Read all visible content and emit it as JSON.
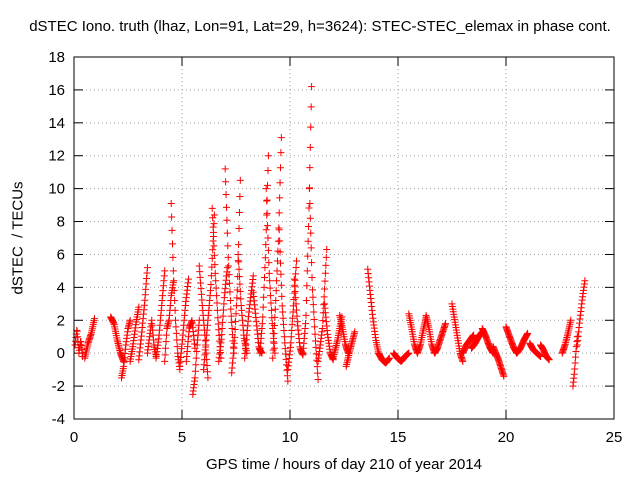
{
  "chart_data": {
    "type": "scatter",
    "title": "dSTEC Iono. truth (lhaz, Lon=91, Lat=29, h=3624): STEC-STEC_elemax in phase cont.",
    "xlabel": "GPS time / hours of day 210 of year 2014",
    "ylabel": "dSTEC  / TECUs",
    "xlim": [
      0,
      25
    ],
    "ylim": [
      -4,
      18
    ],
    "xticks": [
      "0",
      "5",
      "10",
      "15",
      "20",
      "25"
    ],
    "yticks": [
      "-4",
      "-2",
      "0",
      "2",
      "4",
      "6",
      "8",
      "10",
      "12",
      "14",
      "16",
      "18"
    ],
    "grid": true,
    "marker": "+",
    "color": "#ff0000",
    "arcs": [
      {
        "x0": 0.05,
        "x1": 0.4,
        "y": [
          0.5,
          1.5,
          0.0,
          0.8,
          -0.2
        ]
      },
      {
        "x0": 0.5,
        "x1": 0.95,
        "y": [
          -0.3,
          0.6,
          1.2,
          2.1
        ]
      },
      {
        "x0": 1.7,
        "x1": 2.3,
        "y": [
          2.2,
          1.8,
          0.8,
          0.0,
          -0.5
        ]
      },
      {
        "x0": 2.2,
        "x1": 2.6,
        "y": [
          -1.5,
          -0.8,
          0.5,
          1.5,
          2.0
        ]
      },
      {
        "x0": 2.6,
        "x1": 3.0,
        "y": [
          -0.5,
          0.5,
          1.8,
          2.8
        ]
      },
      {
        "x0": 3.0,
        "x1": 3.4,
        "y": [
          -0.4,
          1.2,
          3.0,
          5.2
        ]
      },
      {
        "x0": 3.4,
        "x1": 3.8,
        "y": [
          0.0,
          1.0,
          2.0,
          0.5,
          -0.2
        ]
      },
      {
        "x0": 3.8,
        "x1": 4.2,
        "y": [
          -0.3,
          1.0,
          3.0,
          5.0
        ]
      },
      {
        "x0": 4.2,
        "x1": 4.6,
        "y": [
          -0.5,
          1.5,
          2.0,
          3.5,
          4.3
        ]
      },
      {
        "x0": 4.5,
        "x1": 4.9,
        "y": [
          9.1,
          5.0,
          2.0,
          0.0,
          -1.0
        ]
      },
      {
        "x0": 4.9,
        "x1": 5.3,
        "y": [
          -0.8,
          1.0,
          3.0,
          4.5
        ]
      },
      {
        "x0": 5.2,
        "x1": 5.6,
        "y": [
          -0.5,
          1.5,
          2.0,
          0.3
        ]
      },
      {
        "x0": 5.5,
        "x1": 5.8,
        "y": [
          -2.5,
          -1.5,
          0.5,
          2.0
        ]
      },
      {
        "x0": 5.8,
        "x1": 6.2,
        "y": [
          5.3,
          3.0,
          1.0,
          -1.5
        ]
      },
      {
        "x0": 6.0,
        "x1": 6.5,
        "y": [
          -1.0,
          1.5,
          4.0,
          8.4
        ]
      },
      {
        "x0": 6.4,
        "x1": 6.8,
        "y": [
          8.8,
          5.0,
          2.0,
          -0.3
        ]
      },
      {
        "x0": 6.7,
        "x1": 7.1,
        "y": [
          -0.5,
          1.0,
          3.5,
          5.2
        ]
      },
      {
        "x0": 7.0,
        "x1": 7.4,
        "y": [
          11.2,
          6.0,
          2.5,
          0.0
        ]
      },
      {
        "x0": 7.3,
        "x1": 7.7,
        "y": [
          -1.2,
          0.8,
          4.0,
          10.5
        ]
      },
      {
        "x0": 7.6,
        "x1": 8.0,
        "y": [
          6.0,
          3.0,
          1.0,
          0.0
        ]
      },
      {
        "x0": 7.9,
        "x1": 8.3,
        "y": [
          -0.3,
          2.5,
          4.7
        ]
      },
      {
        "x0": 8.3,
        "x1": 8.7,
        "y": [
          3.7,
          2.0,
          0.3,
          0.0
        ]
      },
      {
        "x0": 8.6,
        "x1": 9.0,
        "y": [
          0.0,
          2.0,
          6.0,
          12.0
        ]
      },
      {
        "x0": 8.9,
        "x1": 9.3,
        "y": [
          10.0,
          5.0,
          2.0,
          0.0
        ]
      },
      {
        "x0": 9.2,
        "x1": 9.6,
        "y": [
          -0.3,
          3.0,
          7.0,
          13.1
        ]
      },
      {
        "x0": 9.5,
        "x1": 9.9,
        "y": [
          7.5,
          3.0,
          0.5,
          -1.7
        ]
      },
      {
        "x0": 9.9,
        "x1": 10.3,
        "y": [
          -1.0,
          0.5,
          3.0,
          5.6
        ]
      },
      {
        "x0": 10.2,
        "x1": 10.6,
        "y": [
          4.5,
          2.0,
          0.3,
          -0.1
        ]
      },
      {
        "x0": 10.6,
        "x1": 11.0,
        "y": [
          0.0,
          2.0,
          8.0,
          16.2
        ]
      },
      {
        "x0": 10.9,
        "x1": 11.3,
        "y": [
          10.0,
          4.0,
          1.0,
          -1.6
        ]
      },
      {
        "x0": 11.3,
        "x1": 11.7,
        "y": [
          -0.5,
          1.5,
          6.3
        ]
      },
      {
        "x0": 11.6,
        "x1": 12.0,
        "y": [
          3.0,
          1.2,
          0.0,
          -0.4
        ]
      },
      {
        "x0": 12.0,
        "x1": 12.4,
        "y": [
          -0.3,
          0.8,
          2.2
        ]
      },
      {
        "x0": 12.3,
        "x1": 12.7,
        "y": [
          2.3,
          1.5,
          0.5,
          0.0
        ]
      },
      {
        "x0": 12.6,
        "x1": 13.0,
        "y": [
          -0.8,
          0.3,
          1.3
        ]
      },
      {
        "x0": 13.6,
        "x1": 14.1,
        "y": [
          5.1,
          3.5,
          2.0,
          0.8,
          0.0
        ]
      },
      {
        "x0": 14.1,
        "x1": 14.6,
        "y": [
          0.0,
          -0.4,
          -0.6,
          -0.3
        ]
      },
      {
        "x0": 14.8,
        "x1": 15.5,
        "y": [
          0.0,
          -0.3,
          -0.5,
          -0.2,
          0.0
        ]
      },
      {
        "x0": 15.5,
        "x1": 15.9,
        "y": [
          2.4,
          1.5,
          0.5,
          0.0
        ]
      },
      {
        "x0": 15.9,
        "x1": 16.3,
        "y": [
          0.0,
          0.5,
          1.4,
          2.2
        ]
      },
      {
        "x0": 16.3,
        "x1": 16.7,
        "y": [
          2.3,
          1.5,
          0.5,
          0.0
        ]
      },
      {
        "x0": 16.7,
        "x1": 17.2,
        "y": [
          0.0,
          0.3,
          0.8,
          1.3,
          1.8
        ]
      },
      {
        "x0": 17.5,
        "x1": 18.0,
        "y": [
          3.0,
          2.0,
          1.0,
          0.0,
          -0.5
        ]
      },
      {
        "x0": 18.0,
        "x1": 18.5,
        "y": [
          0.0,
          0.5,
          0.8,
          1.1
        ]
      },
      {
        "x0": 18.4,
        "x1": 18.9,
        "y": [
          0.3,
          0.6,
          1.0,
          1.3
        ]
      },
      {
        "x0": 18.9,
        "x1": 19.4,
        "y": [
          1.5,
          1.0,
          0.4,
          0.0
        ]
      },
      {
        "x0": 19.4,
        "x1": 19.9,
        "y": [
          0.4,
          0.0,
          -0.4,
          -0.9,
          -1.4
        ]
      },
      {
        "x0": 20.0,
        "x1": 20.5,
        "y": [
          1.6,
          1.0,
          0.4,
          0.0
        ]
      },
      {
        "x0": 20.5,
        "x1": 21.0,
        "y": [
          0.0,
          0.3,
          0.8,
          1.2
        ]
      },
      {
        "x0": 21.1,
        "x1": 21.6,
        "y": [
          0.6,
          0.2,
          0.0,
          -0.2
        ]
      },
      {
        "x0": 21.6,
        "x1": 22.0,
        "y": [
          0.5,
          0.2,
          -0.2,
          -0.4
        ]
      },
      {
        "x0": 22.6,
        "x1": 23.0,
        "y": [
          0.0,
          0.5,
          1.2,
          2.0
        ]
      },
      {
        "x0": 23.1,
        "x1": 23.3,
        "y": [
          -2.0,
          -1.2,
          0.0,
          1.0
        ]
      },
      {
        "x0": 23.3,
        "x1": 23.65,
        "y": [
          0.5,
          2.0,
          3.3,
          4.4
        ]
      }
    ]
  }
}
